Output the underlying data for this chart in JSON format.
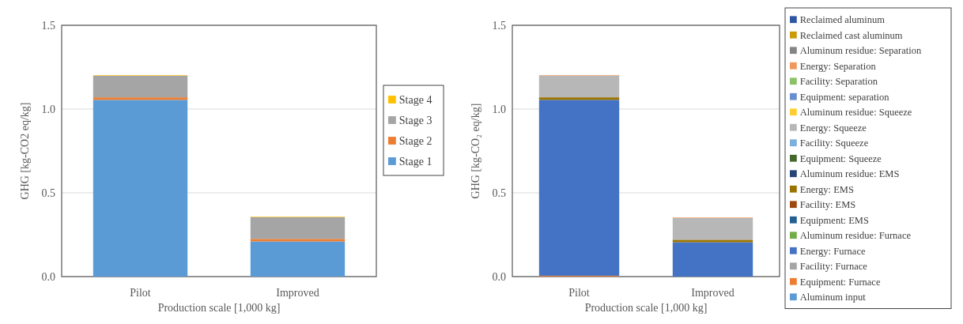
{
  "chart_data": [
    {
      "type": "bar",
      "stacked": true,
      "xlabel": "Production scale [1,000 kg]",
      "ylabel": "GHG [kg-CO2 eq/kg]",
      "categories": [
        "Pilot",
        "Improved"
      ],
      "ylim": [
        0,
        1.5
      ],
      "yticks": [
        {
          "value": 0,
          "label": "0.0"
        },
        {
          "value": 0.5,
          "label": "0.5"
        },
        {
          "value": 1,
          "label": "1.0"
        },
        {
          "value": 1.5,
          "label": "1.5"
        }
      ],
      "grid": "y",
      "legend": "right",
      "series": [
        {
          "name": "Stage 1",
          "color": "#5b9bd5",
          "values": [
            1.055,
            0.21
          ]
        },
        {
          "name": "Stage 2",
          "color": "#ed7d31",
          "values": [
            0.015,
            0.015
          ]
        },
        {
          "name": "Stage 3",
          "color": "#a5a5a5",
          "values": [
            0.13,
            0.13
          ]
        },
        {
          "name": "Stage 4",
          "color": "#ffc000",
          "values": [
            0.003,
            0.003
          ]
        }
      ]
    },
    {
      "type": "bar",
      "stacked": true,
      "xlabel": "Production scale [1,000 kg]",
      "ylabel": "GHG [kg-CO₂ eq/kg]",
      "categories": [
        "Pilot",
        "Improved"
      ],
      "ylim": [
        0,
        1.5
      ],
      "yticks": [
        {
          "value": 0,
          "label": "0.0"
        },
        {
          "value": 0.5,
          "label": "0.5"
        },
        {
          "value": 1,
          "label": "1.0"
        },
        {
          "value": 1.5,
          "label": "1.5"
        }
      ],
      "grid": "y",
      "legend": "right",
      "series": [
        {
          "name": "Aluminum input",
          "color": "#5b9bd5",
          "values": [
            0,
            0
          ]
        },
        {
          "name": "Equipment: Furnace",
          "color": "#ed7d31",
          "values": [
            0.005,
            0
          ]
        },
        {
          "name": "Facility: Furnace",
          "color": "#a5a5a5",
          "values": [
            0,
            0
          ]
        },
        {
          "name": "Energy: Furnace",
          "color": "#4472c4",
          "values": [
            1.05,
            0.205
          ]
        },
        {
          "name": "Aluminum residue: Furnace",
          "color": "#70ad47",
          "values": [
            0,
            0
          ]
        },
        {
          "name": "Equipment: EMS",
          "color": "#255e91",
          "values": [
            0,
            0
          ]
        },
        {
          "name": "Facility: EMS",
          "color": "#9e480e",
          "values": [
            0,
            0
          ]
        },
        {
          "name": "Energy: EMS",
          "color": "#997300",
          "values": [
            0.015,
            0.015
          ]
        },
        {
          "name": "Aluminum residue: EMS",
          "color": "#264478",
          "values": [
            0,
            0
          ]
        },
        {
          "name": "Equipment: Squeeze",
          "color": "#43682b",
          "values": [
            0,
            0
          ]
        },
        {
          "name": "Facility: Squeeze",
          "color": "#7cafdd",
          "values": [
            0,
            0
          ]
        },
        {
          "name": "Energy: Squeeze",
          "color": "#b7b7b7",
          "values": [
            0.13,
            0.13
          ]
        },
        {
          "name": "Aluminum residue: Squeeze",
          "color": "#ffcd33",
          "values": [
            0,
            0
          ]
        },
        {
          "name": "Equipment: separation",
          "color": "#698ed0",
          "values": [
            0,
            0
          ]
        },
        {
          "name": "Facility: Separation",
          "color": "#8cc168",
          "values": [
            0,
            0
          ]
        },
        {
          "name": "Energy: Separation",
          "color": "#f1975a",
          "values": [
            0.003,
            0.003
          ]
        },
        {
          "name": "Aluminum residue: Separation",
          "color": "#848484",
          "values": [
            0,
            0
          ]
        },
        {
          "name": "Reclaimed cast aluminum",
          "color": "#cc9a06",
          "values": [
            0,
            0
          ]
        },
        {
          "name": "Reclaimed aluminum",
          "color": "#2f55a5",
          "values": [
            0,
            0
          ]
        }
      ]
    }
  ]
}
